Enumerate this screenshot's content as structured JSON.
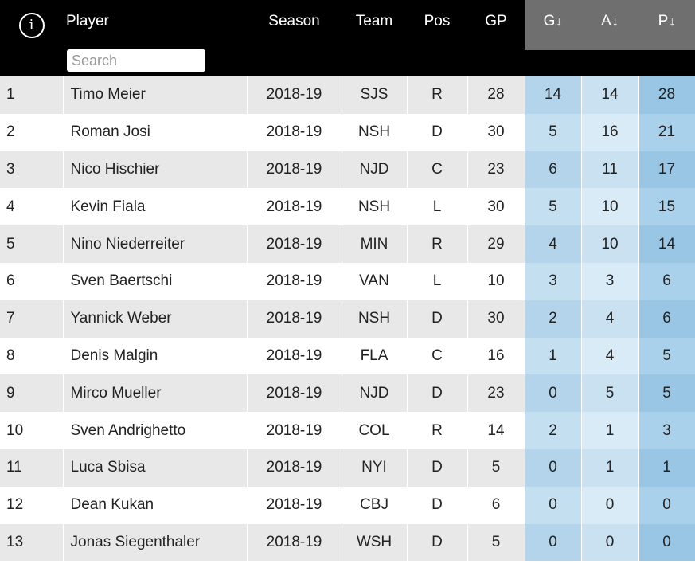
{
  "header": {
    "info_icon": "i",
    "player": "Player",
    "search_placeholder": "Search",
    "season": "Season",
    "team": "Team",
    "pos": "Pos",
    "gp": "GP",
    "g": "G",
    "a": "A",
    "p": "P",
    "sort_arrow": "↓"
  },
  "rows": [
    {
      "rank": "1",
      "player": "Timo Meier",
      "season": "2018-19",
      "team": "SJS",
      "pos": "R",
      "gp": "28",
      "g": "14",
      "a": "14",
      "p": "28"
    },
    {
      "rank": "2",
      "player": "Roman Josi",
      "season": "2018-19",
      "team": "NSH",
      "pos": "D",
      "gp": "30",
      "g": "5",
      "a": "16",
      "p": "21"
    },
    {
      "rank": "3",
      "player": "Nico Hischier",
      "season": "2018-19",
      "team": "NJD",
      "pos": "C",
      "gp": "23",
      "g": "6",
      "a": "11",
      "p": "17"
    },
    {
      "rank": "4",
      "player": "Kevin Fiala",
      "season": "2018-19",
      "team": "NSH",
      "pos": "L",
      "gp": "30",
      "g": "5",
      "a": "10",
      "p": "15"
    },
    {
      "rank": "5",
      "player": "Nino Niederreiter",
      "season": "2018-19",
      "team": "MIN",
      "pos": "R",
      "gp": "29",
      "g": "4",
      "a": "10",
      "p": "14"
    },
    {
      "rank": "6",
      "player": "Sven Baertschi",
      "season": "2018-19",
      "team": "VAN",
      "pos": "L",
      "gp": "10",
      "g": "3",
      "a": "3",
      "p": "6"
    },
    {
      "rank": "7",
      "player": "Yannick Weber",
      "season": "2018-19",
      "team": "NSH",
      "pos": "D",
      "gp": "30",
      "g": "2",
      "a": "4",
      "p": "6"
    },
    {
      "rank": "8",
      "player": "Denis Malgin",
      "season": "2018-19",
      "team": "FLA",
      "pos": "C",
      "gp": "16",
      "g": "1",
      "a": "4",
      "p": "5"
    },
    {
      "rank": "9",
      "player": "Mirco Mueller",
      "season": "2018-19",
      "team": "NJD",
      "pos": "D",
      "gp": "23",
      "g": "0",
      "a": "5",
      "p": "5"
    },
    {
      "rank": "10",
      "player": "Sven Andrighetto",
      "season": "2018-19",
      "team": "COL",
      "pos": "R",
      "gp": "14",
      "g": "2",
      "a": "1",
      "p": "3"
    },
    {
      "rank": "11",
      "player": "Luca Sbisa",
      "season": "2018-19",
      "team": "NYI",
      "pos": "D",
      "gp": "5",
      "g": "0",
      "a": "1",
      "p": "1"
    },
    {
      "rank": "12",
      "player": "Dean Kukan",
      "season": "2018-19",
      "team": "CBJ",
      "pos": "D",
      "gp": "6",
      "g": "0",
      "a": "0",
      "p": "0"
    },
    {
      "rank": "13",
      "player": "Jonas Siegenthaler",
      "season": "2018-19",
      "team": "WSH",
      "pos": "D",
      "gp": "5",
      "g": "0",
      "a": "0",
      "p": "0"
    }
  ]
}
